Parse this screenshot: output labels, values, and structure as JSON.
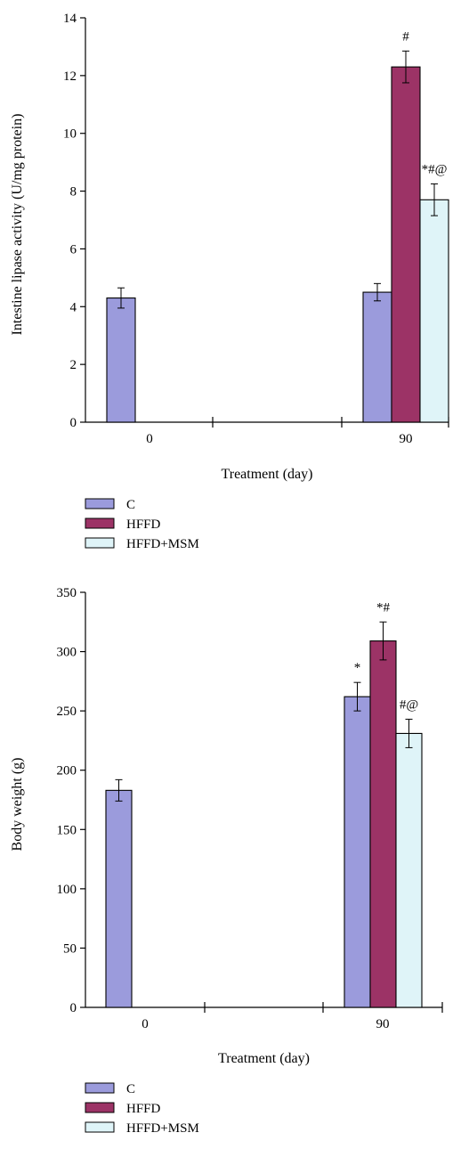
{
  "chart_data": [
    {
      "type": "bar",
      "categories": [
        "0",
        "90"
      ],
      "series": [
        {
          "name": "C",
          "values": [
            4.3,
            4.5
          ],
          "errors": [
            0.35,
            0.3
          ],
          "color": "#9b9bdc"
        },
        {
          "name": "HFFD",
          "values": [
            null,
            12.3
          ],
          "errors": [
            null,
            0.55
          ],
          "color": "#9c3366"
        },
        {
          "name": "HFFD+MSM",
          "values": [
            null,
            7.7
          ],
          "errors": [
            null,
            0.55
          ],
          "color": "#dff4f8"
        }
      ],
      "annotations": [
        {
          "series": 1,
          "category": 1,
          "text": "#"
        },
        {
          "series": 2,
          "category": 1,
          "text": "*#@"
        }
      ],
      "xlabel": "Treatment (day)",
      "ylabel": "Intestine lipase activity (U/mg protein)",
      "ylim": [
        0,
        14
      ],
      "yticks": [
        0,
        2,
        4,
        6,
        8,
        10,
        12,
        14
      ],
      "legend_position": "bottom-left",
      "grid": false
    },
    {
      "type": "bar",
      "categories": [
        "0",
        "90"
      ],
      "series": [
        {
          "name": "C",
          "values": [
            183,
            262
          ],
          "errors": [
            9,
            12
          ],
          "color": "#9b9bdc"
        },
        {
          "name": "HFFD",
          "values": [
            null,
            309
          ],
          "errors": [
            null,
            16
          ],
          "color": "#9c3366"
        },
        {
          "name": "HFFD+MSM",
          "values": [
            null,
            231
          ],
          "errors": [
            null,
            12
          ],
          "color": "#dff4f8"
        }
      ],
      "annotations": [
        {
          "series": 0,
          "category": 1,
          "text": "*"
        },
        {
          "series": 1,
          "category": 1,
          "text": "*#"
        },
        {
          "series": 2,
          "category": 1,
          "text": "#@"
        }
      ],
      "xlabel": "Treatment (day)",
      "ylabel": "Body weight (g)",
      "ylim": [
        0,
        350
      ],
      "yticks": [
        0,
        50,
        100,
        150,
        200,
        250,
        300,
        350
      ],
      "legend_position": "bottom-left",
      "grid": false
    }
  ]
}
